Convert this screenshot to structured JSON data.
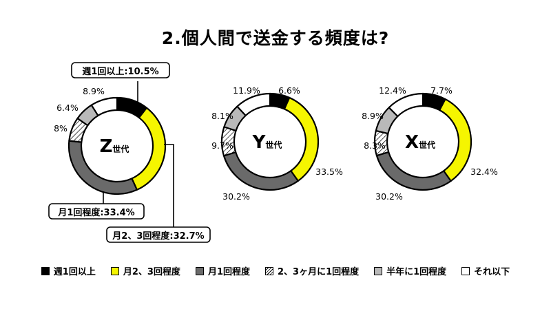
{
  "title": "2.個人間で送金する頻度は?",
  "colors": {
    "weekly": "#000000",
    "twice_thrice_month": "#f5f500",
    "monthly": "#6a6a6a",
    "hatched": "#ffffff",
    "half_year": "#b9b9b9",
    "other": "#ffffff"
  },
  "legend": [
    {
      "label": "週1回以上",
      "fill": "#000000",
      "pattern": false
    },
    {
      "label": "月2、3回程度",
      "fill": "#f5f500",
      "pattern": false
    },
    {
      "label": "月1回程度",
      "fill": "#6a6a6a",
      "pattern": false
    },
    {
      "label": "2、3ヶ月に1回程度",
      "fill": "#ffffff",
      "pattern": true
    },
    {
      "label": "半年に1回程度",
      "fill": "#b9b9b9",
      "pattern": false
    },
    {
      "label": "それ以下",
      "fill": "#ffffff",
      "pattern": false
    }
  ],
  "chart_data": [
    {
      "type": "pie",
      "center_label": {
        "main": "Z",
        "sub": "世代"
      },
      "categories": [
        "週1回以上",
        "月2、3回程度",
        "月1回程度",
        "2、3ヶ月に1回程度",
        "半年に1回程度",
        "それ以下"
      ],
      "values": [
        10.5,
        32.7,
        33.4,
        8,
        6.4,
        8.9
      ],
      "labels": [
        "週1回以上:10.5%",
        "月2、3回程度:32.7%",
        "月1回程度:33.4%",
        "8%",
        "6.4%",
        "8.9%"
      ]
    },
    {
      "type": "pie",
      "center_label": {
        "main": "Y",
        "sub": "世代"
      },
      "categories": [
        "週1回以上",
        "月2、3回程度",
        "月1回程度",
        "2、3ヶ月に1回程度",
        "半年に1回程度",
        "それ以下"
      ],
      "values": [
        6.6,
        33.5,
        30.2,
        9.7,
        8.1,
        11.9
      ],
      "labels": [
        "6.6%",
        "33.5%",
        "30.2%",
        "9.7%",
        "8.1%",
        "11.9%"
      ]
    },
    {
      "type": "pie",
      "center_label": {
        "main": "X",
        "sub": "世代"
      },
      "categories": [
        "週1回以上",
        "月2、3回程度",
        "月1回程度",
        "2、3ヶ月に1回程度",
        "半年に1回程度",
        "それ以下"
      ],
      "values": [
        7.7,
        32.4,
        30.2,
        8.3,
        8.9,
        12.4
      ],
      "labels": [
        "7.7%",
        "32.4%",
        "30.2%",
        "8.3%",
        "8.9%",
        "12.4%"
      ]
    }
  ]
}
